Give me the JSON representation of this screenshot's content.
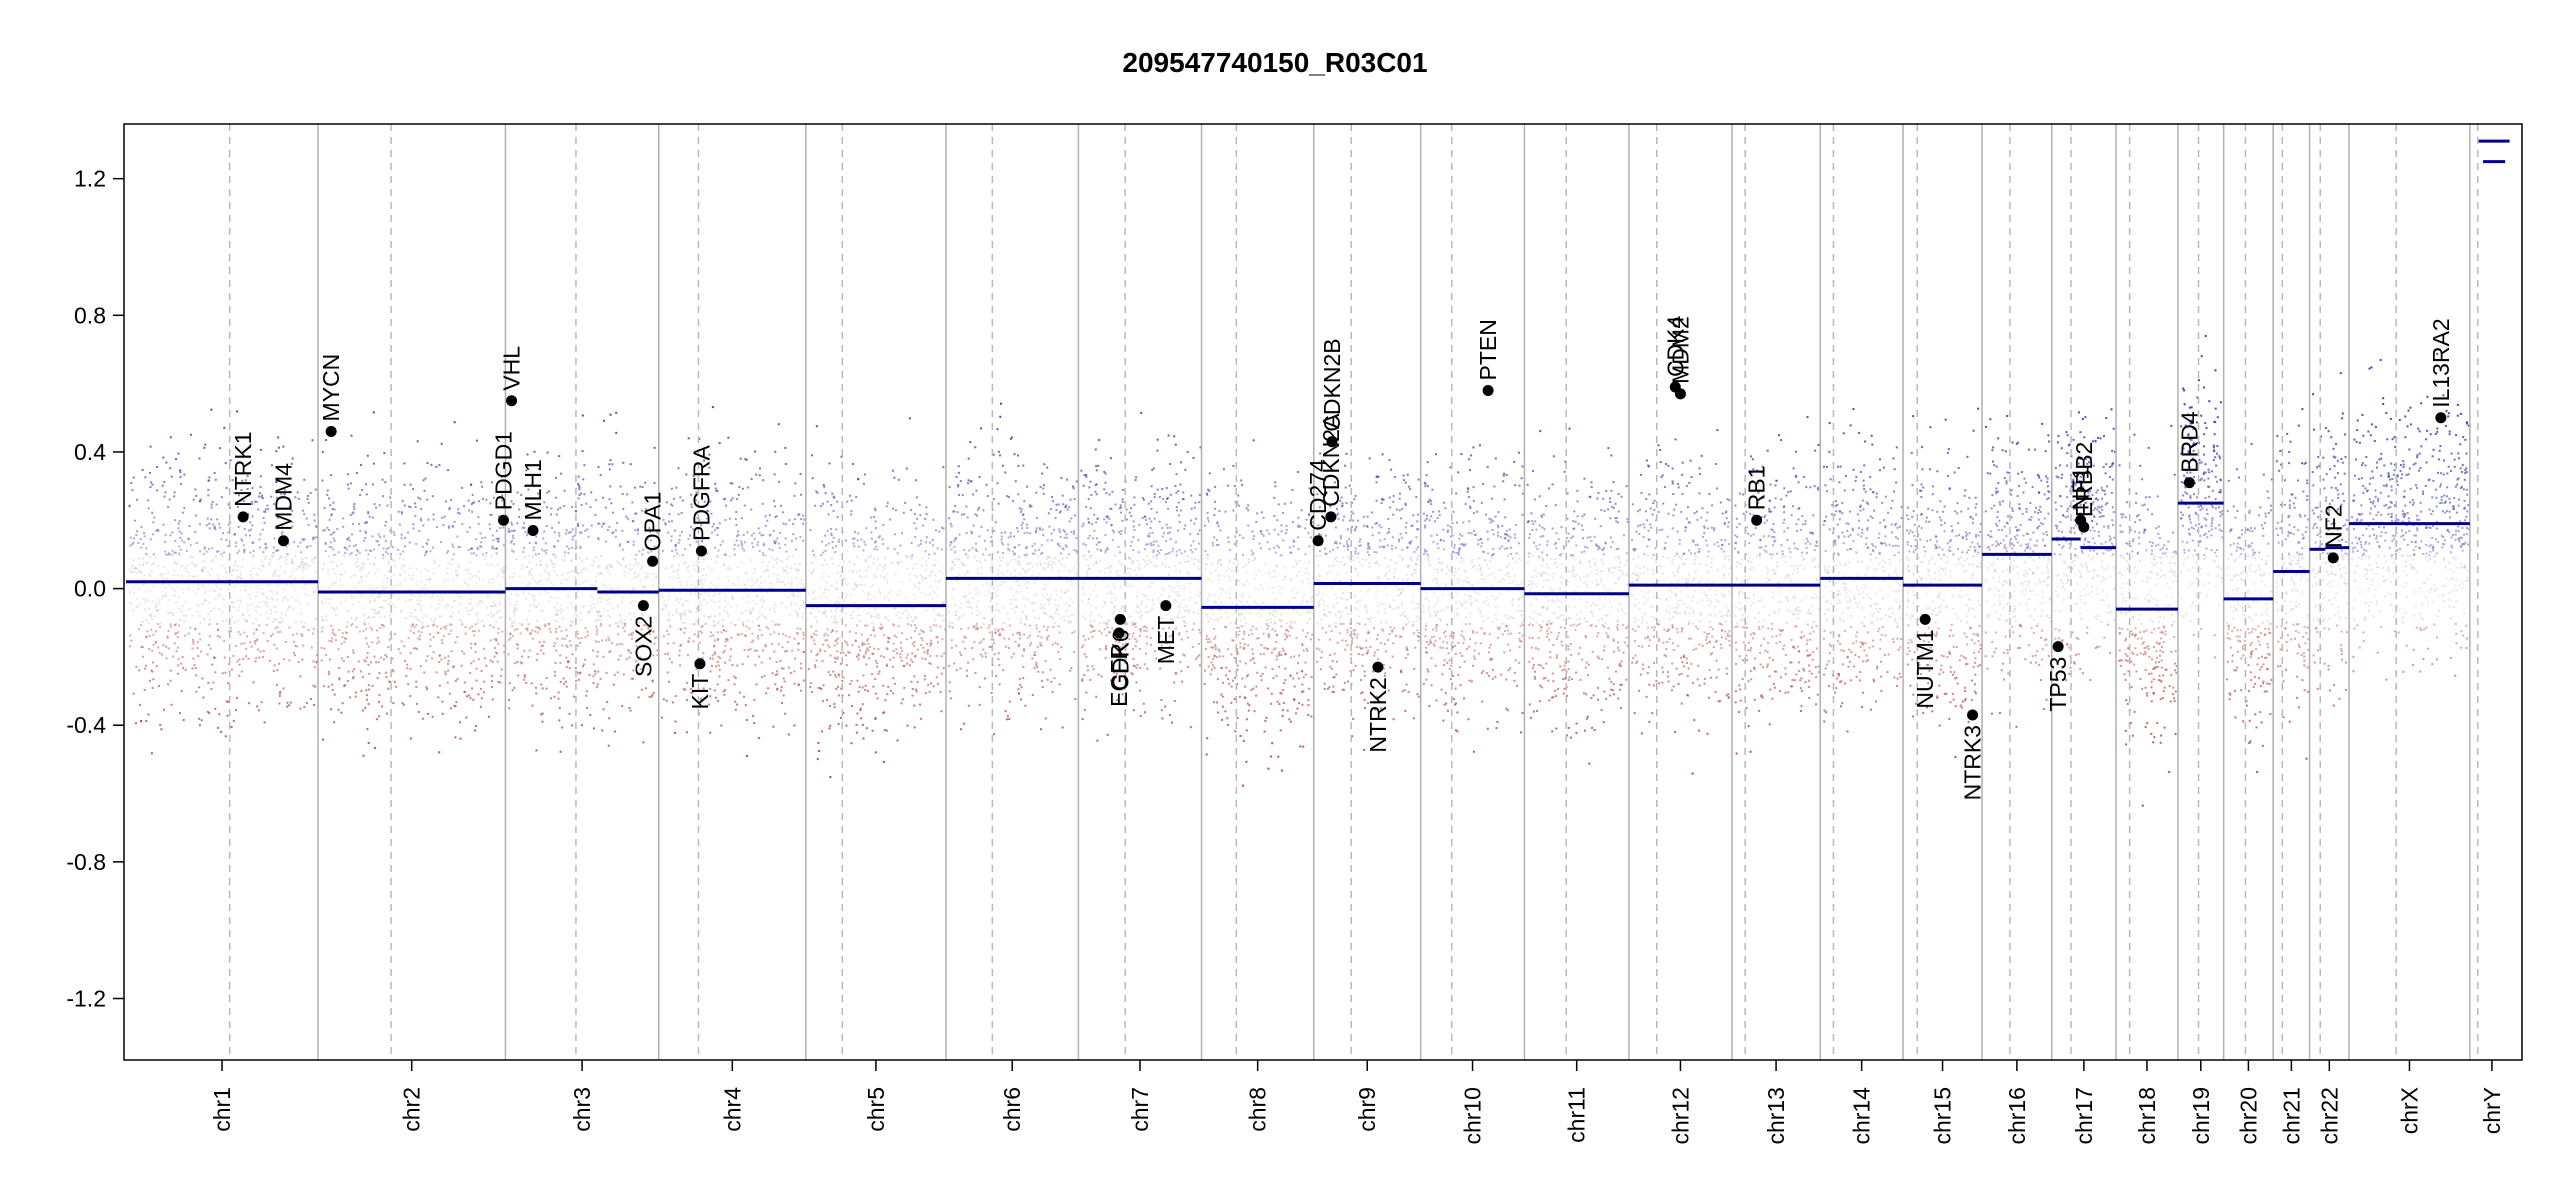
{
  "chart_data": {
    "type": "scatter",
    "title": "209547740150_R03C01",
    "xlabel": "",
    "ylabel": "",
    "ylim": [
      -1.38,
      1.36
    ],
    "yticks": [
      "-1.2",
      "-0.8",
      "-0.4",
      "0.0",
      "0.4",
      "0.8",
      "1.2"
    ],
    "ytick_values": [
      -1.2,
      -0.8,
      -0.4,
      0.0,
      0.4,
      0.8,
      1.2
    ],
    "point_colors": {
      "gain": "#3b3bb4",
      "neutral": "#b4b4b4",
      "loss": "#b43b3b"
    },
    "segment_color": "#00008b",
    "chromosomes": [
      {
        "name": "chr1",
        "length": 248,
        "centromere": 0.54,
        "segments": [
          {
            "from": 0,
            "to": 1,
            "value": 0.02
          }
        ]
      },
      {
        "name": "chr2",
        "length": 242,
        "centromere": 0.39,
        "segments": [
          {
            "from": 0,
            "to": 1,
            "value": -0.01
          }
        ]
      },
      {
        "name": "chr3",
        "length": 198,
        "centromere": 0.46,
        "segments": [
          {
            "from": 0,
            "to": 0.6,
            "value": 0.0
          },
          {
            "from": 0.6,
            "to": 1,
            "value": -0.01
          }
        ]
      },
      {
        "name": "chr4",
        "length": 190,
        "centromere": 0.27,
        "segments": [
          {
            "from": 0,
            "to": 1,
            "value": -0.005
          }
        ]
      },
      {
        "name": "chr5",
        "length": 181,
        "centromere": 0.26,
        "segments": [
          {
            "from": 0,
            "to": 1,
            "value": -0.05
          }
        ]
      },
      {
        "name": "chr6",
        "length": 171,
        "centromere": 0.35,
        "segments": [
          {
            "from": 0,
            "to": 1,
            "value": 0.03
          }
        ]
      },
      {
        "name": "chr7",
        "length": 159,
        "centromere": 0.38,
        "segments": [
          {
            "from": 0,
            "to": 1,
            "value": 0.03
          }
        ]
      },
      {
        "name": "chr8",
        "length": 145,
        "centromere": 0.31,
        "segments": [
          {
            "from": 0,
            "to": 1,
            "value": -0.055
          }
        ]
      },
      {
        "name": "chr9",
        "length": 138,
        "centromere": 0.35,
        "segments": [
          {
            "from": 0,
            "to": 1,
            "value": 0.015
          }
        ]
      },
      {
        "name": "chr10",
        "length": 134,
        "centromere": 0.3,
        "segments": [
          {
            "from": 0,
            "to": 1,
            "value": 0.0
          }
        ]
      },
      {
        "name": "chr11",
        "length": 135,
        "centromere": 0.4,
        "segments": [
          {
            "from": 0,
            "to": 1,
            "value": -0.015
          }
        ]
      },
      {
        "name": "chr12",
        "length": 133,
        "centromere": 0.27,
        "segments": [
          {
            "from": 0,
            "to": 1,
            "value": 0.01
          }
        ]
      },
      {
        "name": "chr13",
        "length": 114,
        "centromere": 0.15,
        "segments": [
          {
            "from": 0,
            "to": 1,
            "value": 0.01
          }
        ]
      },
      {
        "name": "chr14",
        "length": 107,
        "centromere": 0.16,
        "segments": [
          {
            "from": 0,
            "to": 1,
            "value": 0.03
          }
        ]
      },
      {
        "name": "chr15",
        "length": 102,
        "centromere": 0.18,
        "segments": [
          {
            "from": 0,
            "to": 1,
            "value": 0.01
          }
        ]
      },
      {
        "name": "chr16",
        "length": 90,
        "centromere": 0.4,
        "segments": [
          {
            "from": 0,
            "to": 1,
            "value": 0.1
          }
        ]
      },
      {
        "name": "chr17",
        "length": 83,
        "centromere": 0.3,
        "segments": [
          {
            "from": 0,
            "to": 0.45,
            "value": 0.145
          },
          {
            "from": 0.45,
            "to": 1,
            "value": 0.12
          }
        ]
      },
      {
        "name": "chr18",
        "length": 80,
        "centromere": 0.22,
        "segments": [
          {
            "from": 0,
            "to": 1,
            "value": -0.06
          }
        ]
      },
      {
        "name": "chr19",
        "length": 59,
        "centromere": 0.45,
        "segments": [
          {
            "from": 0,
            "to": 1,
            "value": 0.25
          }
        ]
      },
      {
        "name": "chr20",
        "length": 64,
        "centromere": 0.44,
        "segments": [
          {
            "from": 0,
            "to": 1,
            "value": -0.03
          }
        ]
      },
      {
        "name": "chr21",
        "length": 47,
        "centromere": 0.25,
        "segments": [
          {
            "from": 0,
            "to": 1,
            "value": 0.05
          }
        ]
      },
      {
        "name": "chr22",
        "length": 51,
        "centromere": 0.27,
        "segments": [
          {
            "from": 0,
            "to": 0.4,
            "value": 0.115
          },
          {
            "from": 0.4,
            "to": 1,
            "value": 0.12
          }
        ]
      },
      {
        "name": "chrX",
        "length": 156,
        "centromere": 0.39,
        "segments": [
          {
            "from": 0,
            "to": 1,
            "value": 0.19
          }
        ]
      },
      {
        "name": "chrY",
        "length": 57,
        "centromere": 0.18,
        "segments": [
          {
            "from": 0.2,
            "to": 0.9,
            "value": 1.31
          },
          {
            "from": 0.3,
            "to": 0.8,
            "value": 1.25
          }
        ]
      }
    ],
    "genes": [
      {
        "name": "NTRK1",
        "chrom": "chr1",
        "pos": 0.61,
        "value": 0.21
      },
      {
        "name": "MDM4",
        "chrom": "chr1",
        "pos": 0.82,
        "value": 0.14
      },
      {
        "name": "MYCN",
        "chrom": "chr2",
        "pos": 0.07,
        "value": 0.46
      },
      {
        "name": "PDGD1",
        "chrom": "chr2",
        "pos": 0.99,
        "value": 0.2
      },
      {
        "name": "VHL",
        "chrom": "chr3",
        "pos": 0.04,
        "value": 0.55
      },
      {
        "name": "MLH1",
        "chrom": "chr3",
        "pos": 0.18,
        "value": 0.17
      },
      {
        "name": "SOX2",
        "chrom": "chr3",
        "pos": 0.9,
        "value": -0.05
      },
      {
        "name": "OPA1",
        "chrom": "chr3",
        "pos": 0.96,
        "value": 0.08
      },
      {
        "name": "PDGFRA",
        "chrom": "chr4",
        "pos": 0.29,
        "value": 0.11
      },
      {
        "name": "KIT",
        "chrom": "chr4",
        "pos": 0.28,
        "value": -0.22
      },
      {
        "name": "EGFR",
        "chrom": "chr7",
        "pos": 0.33,
        "value": -0.13
      },
      {
        "name": "CDK6",
        "chrom": "chr7",
        "pos": 0.34,
        "value": -0.09
      },
      {
        "name": "MET",
        "chrom": "chr7",
        "pos": 0.71,
        "value": -0.05
      },
      {
        "name": "CD274",
        "chrom": "chr9",
        "pos": 0.04,
        "value": 0.14
      },
      {
        "name": "CDKN2A",
        "chrom": "chr9",
        "pos": 0.16,
        "value": 0.21
      },
      {
        "name": "CDKN2B",
        "chrom": "chr9",
        "pos": 0.17,
        "value": 0.43
      },
      {
        "name": "NTRK2",
        "chrom": "chr9",
        "pos": 0.6,
        "value": -0.23
      },
      {
        "name": "PTEN",
        "chrom": "chr10",
        "pos": 0.65,
        "value": 0.58
      },
      {
        "name": "CDK4",
        "chrom": "chr12",
        "pos": 0.45,
        "value": 0.59
      },
      {
        "name": "MDM2",
        "chrom": "chr12",
        "pos": 0.5,
        "value": 0.57
      },
      {
        "name": "RB1",
        "chrom": "chr13",
        "pos": 0.28,
        "value": 0.2
      },
      {
        "name": "NUTM1",
        "chrom": "chr15",
        "pos": 0.28,
        "value": -0.09
      },
      {
        "name": "NTRK3",
        "chrom": "chr15",
        "pos": 0.88,
        "value": -0.37
      },
      {
        "name": "TP53",
        "chrom": "chr17",
        "pos": 0.1,
        "value": -0.17
      },
      {
        "name": "NF1",
        "chrom": "chr17",
        "pos": 0.45,
        "value": 0.2
      },
      {
        "name": "ERBB2",
        "chrom": "chr17",
        "pos": 0.5,
        "value": 0.18
      },
      {
        "name": "BRD4",
        "chrom": "chr19",
        "pos": 0.25,
        "value": 0.31
      },
      {
        "name": "NF2",
        "chrom": "chr22",
        "pos": 0.6,
        "value": 0.09
      },
      {
        "name": "IL13RA2",
        "chrom": "chrX",
        "pos": 0.76,
        "value": 0.5
      }
    ]
  }
}
